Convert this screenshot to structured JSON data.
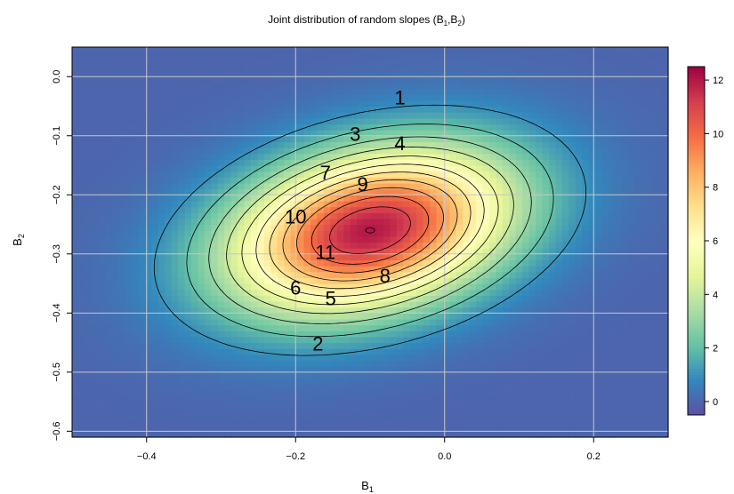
{
  "chart_data": {
    "type": "heatmap",
    "title": "Joint distribution of random slopes (B",
    "title_sub1": "1",
    "title_mid": ",B",
    "title_sub2": "2",
    "title_end": ")",
    "xlabel": "B",
    "xlabel_sub": "1",
    "ylabel": "B",
    "ylabel_sub": "2",
    "xlim": [
      -0.5,
      0.3
    ],
    "ylim": [
      -0.61,
      0.05
    ],
    "x_ticks": [
      -0.4,
      -0.2,
      0.0,
      0.2
    ],
    "x_tick_labels": [
      "−0.4",
      "−0.2",
      "0.0",
      "0.2"
    ],
    "y_ticks": [
      0.0,
      -0.1,
      -0.2,
      -0.3,
      -0.4,
      -0.5,
      -0.6
    ],
    "y_tick_labels": [
      "0.0",
      "−0.1",
      "−0.2",
      "−0.3",
      "−0.4",
      "−0.5",
      "−0.6"
    ],
    "grid": true,
    "density": {
      "mean": [
        -0.1,
        -0.26
      ],
      "sd": [
        0.13,
        0.095
      ],
      "rho": 0.3,
      "peak": 12
    },
    "colorbar": {
      "range": [
        -0.5,
        12.5
      ],
      "ticks": [
        0,
        2,
        4,
        6,
        8,
        10,
        12
      ],
      "tick_labels": [
        "0",
        "2",
        "4",
        "6",
        "8",
        "10",
        "12"
      ],
      "palette": [
        "#5E4FA2",
        "#3288BD",
        "#66C2A5",
        "#ABDDA4",
        "#E6F598",
        "#FFFFBF",
        "#FEE08B",
        "#FDAE61",
        "#F46D43",
        "#D53E4F",
        "#9E0142"
      ]
    },
    "contours": {
      "levels": [
        1,
        2,
        3,
        4,
        5,
        6,
        7,
        8,
        9,
        10,
        11
      ],
      "labels": [
        {
          "text": "1",
          "x": -0.06,
          "y": -0.038
        },
        {
          "text": "2",
          "x": -0.17,
          "y": -0.455
        },
        {
          "text": "3",
          "x": -0.12,
          "y": -0.1
        },
        {
          "text": "4",
          "x": -0.06,
          "y": -0.116
        },
        {
          "text": "5",
          "x": -0.153,
          "y": -0.378
        },
        {
          "text": "6",
          "x": -0.2,
          "y": -0.36
        },
        {
          "text": "7",
          "x": -0.16,
          "y": -0.165
        },
        {
          "text": "8",
          "x": -0.08,
          "y": -0.34
        },
        {
          "text": "9",
          "x": -0.11,
          "y": -0.185
        },
        {
          "text": "10",
          "x": -0.2,
          "y": -0.24
        },
        {
          "text": "11",
          "x": -0.16,
          "y": -0.3
        }
      ]
    }
  }
}
